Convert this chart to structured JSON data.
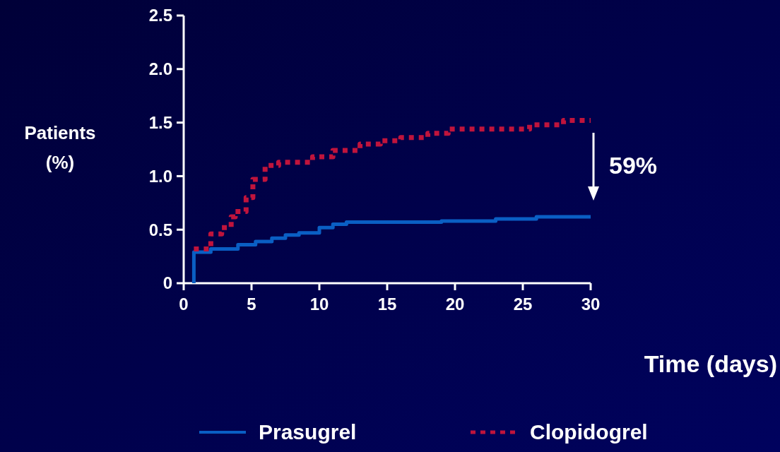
{
  "chart_data": {
    "type": "step",
    "ylabel": "Patients (%)",
    "xlabel": "Time (days)",
    "xlim": [
      0,
      30
    ],
    "xticks": [
      0,
      5,
      10,
      15,
      20,
      25,
      30
    ],
    "ylim": [
      0,
      2.5
    ],
    "yticks": [
      0,
      {
        "value": 0.5,
        "label": "0.5"
      },
      {
        "value": 1,
        "label": "1.0"
      },
      {
        "value": 1.5,
        "label": "1.5"
      },
      {
        "value": 2,
        "label": "2.0"
      },
      {
        "value": 2.5,
        "label": "2.5"
      }
    ],
    "grid": false,
    "legend": "bottom",
    "annotations": [
      "59%"
    ],
    "series": [
      {
        "name": "Prasugrel",
        "color": "#0a5fc4",
        "line_style": "solid",
        "x": [
          0.75,
          0.75,
          2,
          4,
          5.3,
          6.5,
          7.5,
          8.5,
          10,
          11,
          12,
          19,
          23,
          26,
          30
        ],
        "values": [
          0,
          0.29,
          0.32,
          0.36,
          0.39,
          0.42,
          0.45,
          0.47,
          0.52,
          0.55,
          0.57,
          0.58,
          0.6,
          0.62,
          0.62
        ]
      },
      {
        "name": "Clopidogrel",
        "color": "#c0143c",
        "line_style": "dotted",
        "x": [
          0.75,
          2,
          2.8,
          3.5,
          3.8,
          4.6,
          5.1,
          6,
          7,
          9.5,
          11,
          13,
          14.5,
          16,
          18,
          19.5,
          25.5,
          28,
          30
        ],
        "values": [
          0.32,
          0.46,
          0.52,
          0.62,
          0.67,
          0.8,
          0.97,
          1.1,
          1.13,
          1.18,
          1.24,
          1.3,
          1.33,
          1.36,
          1.4,
          1.44,
          1.48,
          1.52,
          1.52
        ]
      }
    ]
  }
}
